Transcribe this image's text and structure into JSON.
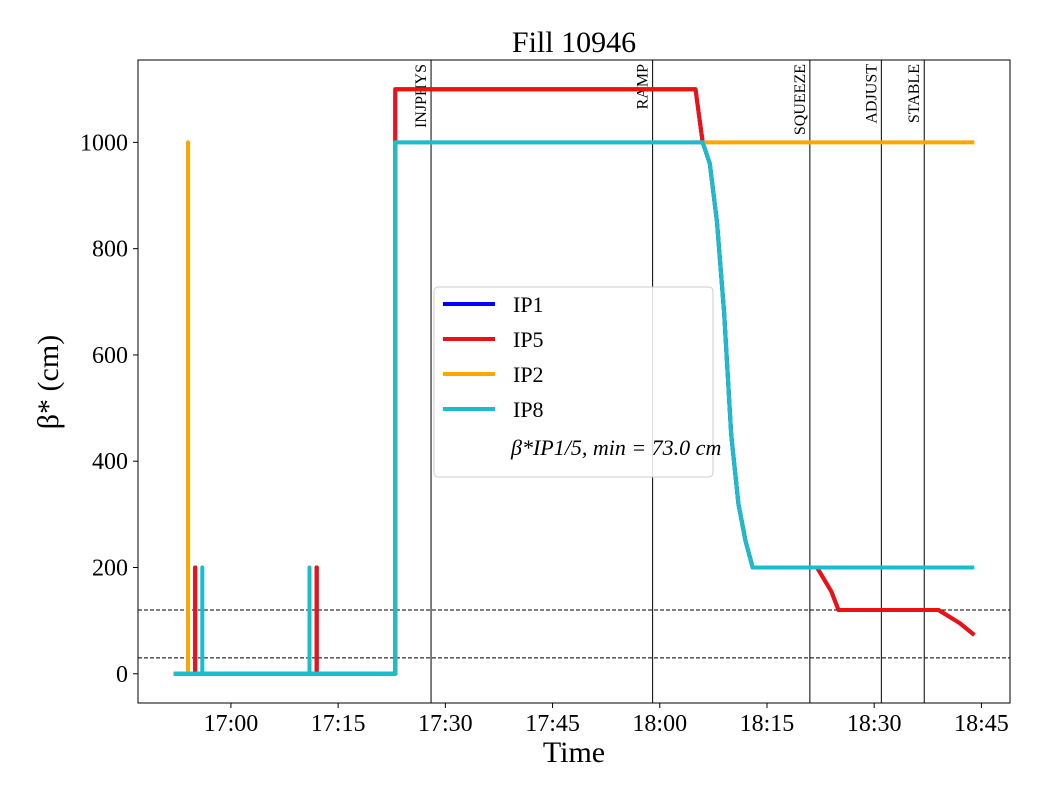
{
  "chart_data": {
    "type": "line",
    "title": "Fill 10946",
    "xlabel": "Time",
    "ylabel": "β* (cm)",
    "xlim": [
      "16:47",
      "18:49"
    ],
    "xticks": [
      "17:00",
      "17:15",
      "17:30",
      "17:45",
      "18:00",
      "18:15",
      "18:30",
      "18:45"
    ],
    "ylim": [
      -55,
      1155
    ],
    "yticks": [
      0,
      200,
      400,
      600,
      800,
      1000
    ],
    "legend": "center",
    "annotation": "β*IP1/5, min = 73.0 cm",
    "events": [
      {
        "label": "INJPHYS",
        "x": "17:28"
      },
      {
        "label": "RAMP",
        "x": "17:59"
      },
      {
        "label": "SQUEEZE",
        "x": "18:21"
      },
      {
        "label": "ADJUST",
        "x": "18:31"
      },
      {
        "label": "STABLE",
        "x": "18:37"
      }
    ],
    "hlines": [
      120,
      30
    ],
    "series": [
      {
        "name": "IP1",
        "color": "#0000ff",
        "x": [
          "16:52",
          "16:55",
          "16:55",
          "16:55",
          "17:12",
          "17:12",
          "17:12",
          "17:23",
          "17:23",
          "17:23",
          "18:05",
          "18:06",
          "18:07",
          "18:08",
          "18:09",
          "18:10",
          "18:11",
          "18:12",
          "18:13",
          "18:22",
          "18:24",
          "18:25",
          "18:39",
          "18:42",
          "18:44"
        ],
        "values": [
          0,
          0,
          200,
          0,
          0,
          200,
          0,
          0,
          660,
          1100,
          1100,
          1000,
          960,
          850,
          680,
          450,
          320,
          250,
          200,
          200,
          155,
          120,
          120,
          95,
          73
        ]
      },
      {
        "name": "IP5",
        "color": "#ee1111",
        "x": [
          "16:52",
          "16:55",
          "16:55",
          "16:55",
          "17:12",
          "17:12",
          "17:12",
          "17:23",
          "17:23",
          "18:05",
          "18:06",
          "18:07",
          "18:08",
          "18:09",
          "18:10",
          "18:11",
          "18:12",
          "18:13",
          "18:22",
          "18:24",
          "18:25",
          "18:39",
          "18:42",
          "18:44"
        ],
        "values": [
          0,
          0,
          200,
          0,
          0,
          200,
          0,
          0,
          1100,
          1100,
          1000,
          960,
          850,
          680,
          450,
          320,
          250,
          200,
          200,
          155,
          120,
          120,
          95,
          73
        ]
      },
      {
        "name": "IP2",
        "color": "#ffa500",
        "x": [
          "16:52",
          "16:54",
          "16:54",
          "16:54",
          "17:23",
          "17:23",
          "18:44"
        ],
        "values": [
          0,
          0,
          1000,
          0,
          0,
          1000,
          1000
        ]
      },
      {
        "name": "IP8",
        "color": "#17becf",
        "x": [
          "16:52",
          "16:56",
          "16:56",
          "16:56",
          "17:11",
          "17:11",
          "17:11",
          "17:23",
          "17:23",
          "18:06",
          "18:07",
          "18:08",
          "18:09",
          "18:10",
          "18:11",
          "18:12",
          "18:13",
          "18:44"
        ],
        "values": [
          0,
          0,
          200,
          0,
          0,
          200,
          0,
          0,
          1000,
          1000,
          960,
          850,
          680,
          450,
          320,
          250,
          200,
          200
        ]
      }
    ]
  }
}
